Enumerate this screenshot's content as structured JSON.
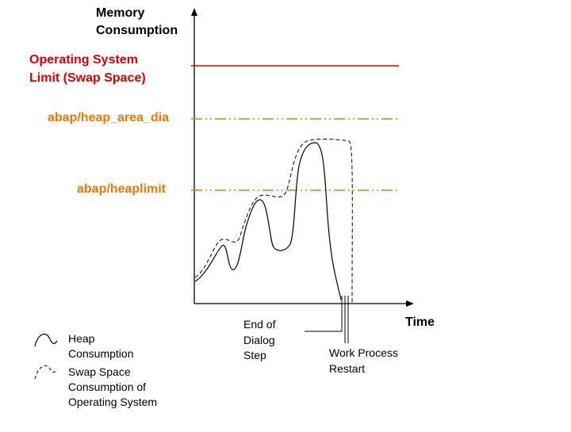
{
  "axis": {
    "y_title_line1": "Memory",
    "y_title_line2": "Consumption",
    "x_title": "Time"
  },
  "limits": {
    "os_limit_line1": "Operating System",
    "os_limit_line2": "Limit (Swap Space)",
    "heap_area_dia": "abap/heap_area_dia",
    "heaplimit": "abap/heaplimit"
  },
  "annotations": {
    "end_of_dialog_step_line1": "End of",
    "end_of_dialog_step_line2": "Dialog",
    "end_of_dialog_step_line3": "Step",
    "work_process_restart_line1": "Work Process",
    "work_process_restart_line2": "Restart"
  },
  "legend": {
    "heap_line1": "Heap",
    "heap_line2": "Consumption",
    "swap_line1": "Swap Space",
    "swap_line2": "Consumption of",
    "swap_line3": "Operating System"
  },
  "colors": {
    "os_limit": "#dd0000",
    "heap_param_labels": "#f07800",
    "lines": "#000000"
  }
}
